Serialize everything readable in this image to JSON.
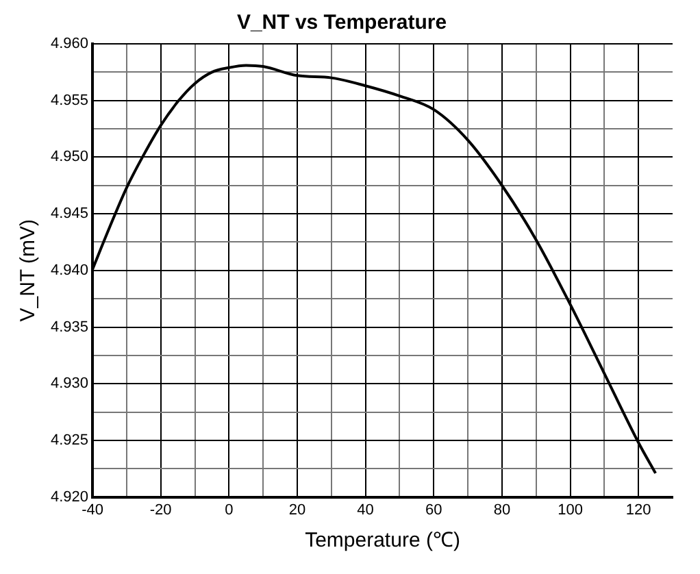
{
  "chart_data": {
    "type": "line",
    "title": "V_NT vs Temperature",
    "xlabel": "Temperature (℃)",
    "ylabel": "V_NT (mV)",
    "series": [
      {
        "color": "#000000",
        "x": [
          -40,
          -35,
          -30,
          -25,
          -20,
          -15,
          -10,
          -5,
          0,
          5,
          10,
          20,
          30,
          40,
          50,
          60,
          70,
          80,
          90,
          100,
          110,
          120,
          125
        ],
        "values": [
          4.9401,
          4.9438,
          4.9473,
          4.9502,
          4.9528,
          4.9549,
          4.9565,
          4.9575,
          4.9579,
          4.9581,
          4.958,
          4.9572,
          4.957,
          4.9563,
          4.9554,
          4.9542,
          4.9515,
          4.9475,
          4.9427,
          4.937,
          4.9309,
          4.9248,
          4.9221
        ]
      }
    ],
    "xlim": [
      -40,
      130
    ],
    "xticks": [
      -40,
      {
        "value": -30,
        "label": null
      },
      -20,
      {
        "value": -10,
        "label": null
      },
      0,
      {
        "value": 10,
        "label": null
      },
      20,
      {
        "value": 30,
        "label": null
      },
      40,
      {
        "value": 50,
        "label": null
      },
      60,
      {
        "value": 70,
        "label": null
      },
      80,
      {
        "value": 90,
        "label": null
      },
      100,
      {
        "value": 110,
        "label": null
      },
      120
    ],
    "ylim": [
      4.92,
      4.96
    ],
    "yticks": [
      {
        "value": 4.92,
        "label": "4.920"
      },
      {
        "value": 4.9225,
        "label": null
      },
      {
        "value": 4.925,
        "label": "4.925"
      },
      {
        "value": 4.9275,
        "label": null
      },
      {
        "value": 4.93,
        "label": "4.930"
      },
      {
        "value": 4.9325,
        "label": null
      },
      {
        "value": 4.935,
        "label": "4.935"
      },
      {
        "value": 4.9375,
        "label": null
      },
      {
        "value": 4.94,
        "label": "4.940"
      },
      {
        "value": 4.9425,
        "label": null
      },
      {
        "value": 4.945,
        "label": "4.945"
      },
      {
        "value": 4.9475,
        "label": null
      },
      {
        "value": 4.95,
        "label": "4.950"
      },
      {
        "value": 4.9525,
        "label": null
      },
      {
        "value": 4.955,
        "label": "4.955"
      },
      {
        "value": 4.9575,
        "label": null
      },
      {
        "value": 4.96,
        "label": "4.960"
      }
    ],
    "grid": true,
    "legend": false,
    "marker": "none",
    "line_style": "solid"
  }
}
